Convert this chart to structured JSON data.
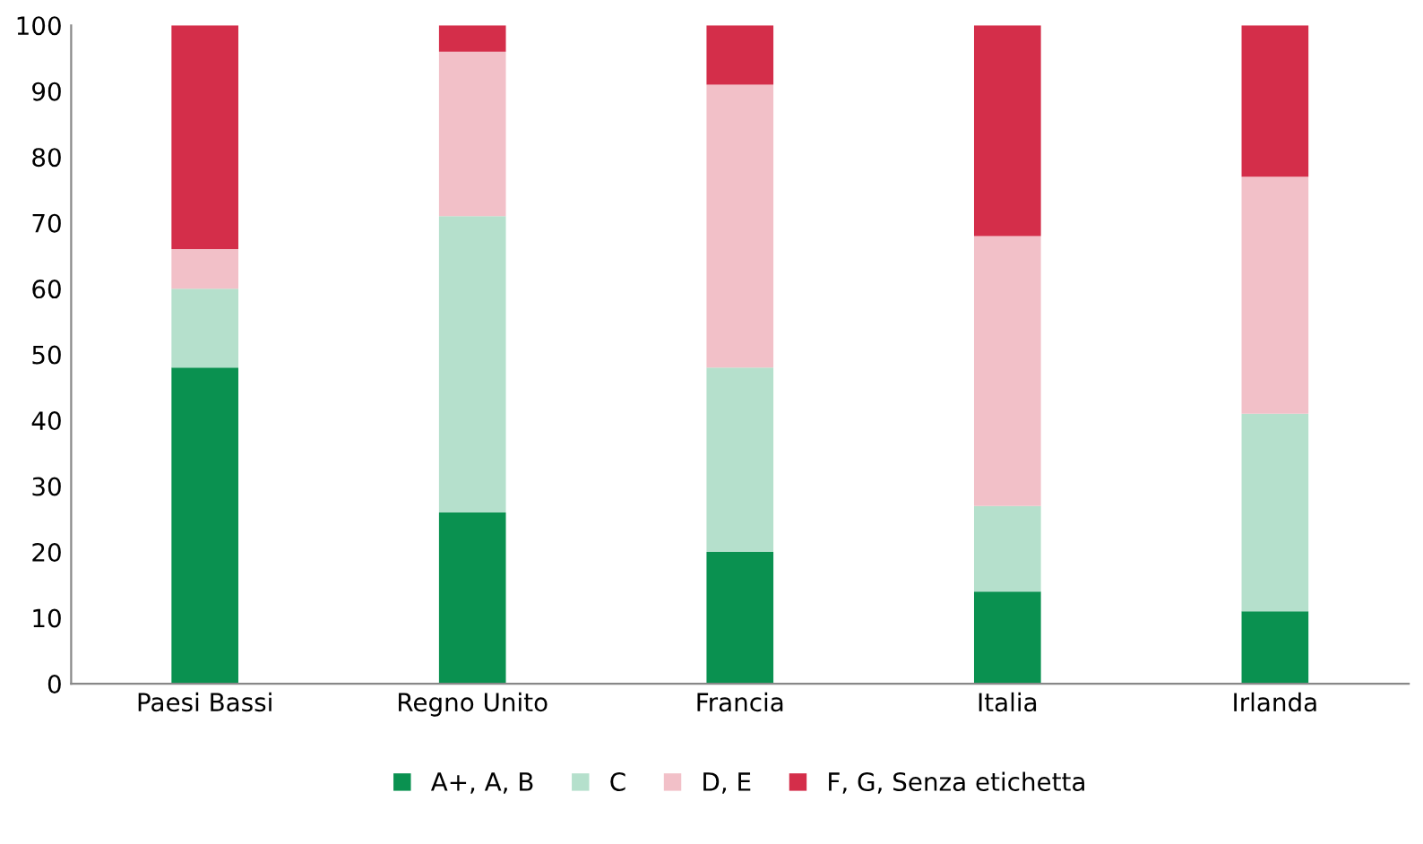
{
  "chart_data": {
    "type": "bar",
    "stacked": true,
    "categories": [
      "Paesi Bassi",
      "Regno Unito",
      "Francia",
      "Italia",
      "Irlanda"
    ],
    "series": [
      {
        "name": "A+, A, B",
        "color": "#0a9150",
        "values": [
          48,
          26,
          20,
          14,
          11
        ]
      },
      {
        "name": "C",
        "color": "#b5e0cc",
        "values": [
          12,
          45,
          28,
          13,
          30
        ]
      },
      {
        "name": "D, E",
        "color": "#f2c0c8",
        "values": [
          6,
          25,
          43,
          41,
          36
        ]
      },
      {
        "name": "F, G, Senza etichetta",
        "color": "#d42e4a",
        "values": [
          34,
          4,
          9,
          32,
          23
        ]
      }
    ],
    "ylim": [
      0,
      100
    ],
    "yticks": [
      0,
      10,
      20,
      30,
      40,
      50,
      60,
      70,
      80,
      90,
      100
    ],
    "grid": false,
    "legend": "bottom"
  }
}
